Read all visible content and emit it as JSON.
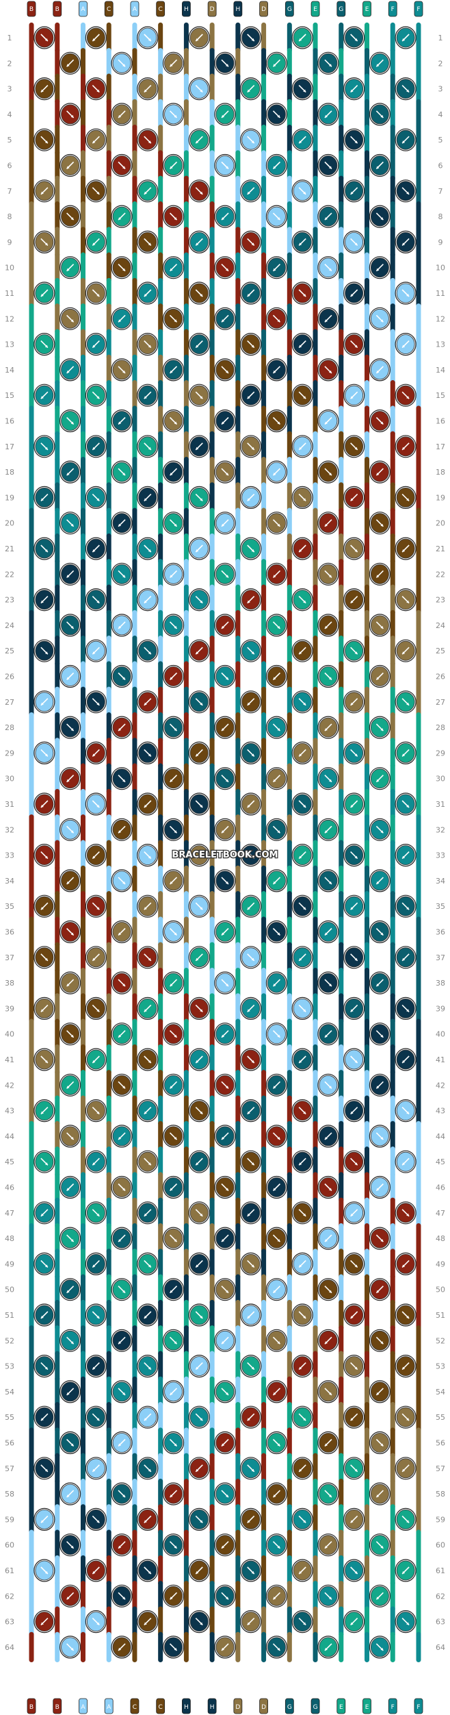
{
  "watermark": "BRACELETBOOK.COM",
  "row_numbers": [
    "1",
    "2",
    "3",
    "4",
    "5",
    "6",
    "7",
    "8",
    "9",
    "10",
    "11",
    "12",
    "13",
    "14",
    "15",
    "16",
    "17",
    "18",
    "19",
    "20",
    "21",
    "22",
    "23",
    "24",
    "25",
    "26",
    "27",
    "28",
    "29",
    "30",
    "31",
    "32",
    "33",
    "34",
    "35",
    "36",
    "37",
    "38",
    "39",
    "40",
    "41",
    "42",
    "43",
    "44",
    "45",
    "46",
    "47",
    "48",
    "49",
    "50",
    "51",
    "52",
    "53",
    "54",
    "55",
    "56",
    "57",
    "58",
    "59",
    "60",
    "61",
    "62",
    "63",
    "64"
  ],
  "strand_letters": [
    "B",
    "B",
    "A",
    "C",
    "A",
    "C",
    "H",
    "D",
    "H",
    "D",
    "G",
    "E",
    "G",
    "E",
    "F",
    "F"
  ],
  "bottom_strand_letters": [
    "B",
    "B",
    "A",
    "A",
    "C",
    "C",
    "H",
    "H",
    "D",
    "D",
    "G",
    "G",
    "E",
    "E",
    "F",
    "F"
  ],
  "colors": {
    "A": "#8ccff7",
    "B": "#8b2313",
    "C": "#6b4511",
    "D": "#8c7443",
    "E": "#13a88a",
    "F": "#0e8c92",
    "G": "#0b5f6e",
    "H": "#0b344c"
  },
  "pattern_description_colors_order": [
    "B",
    "B",
    "A",
    "C",
    "A",
    "C",
    "H",
    "D",
    "H",
    "D",
    "G",
    "E",
    "G",
    "E",
    "F",
    "F"
  ]
}
